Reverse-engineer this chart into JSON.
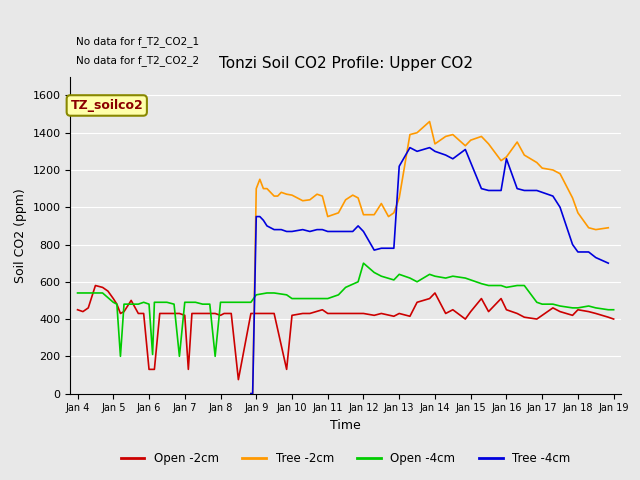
{
  "title": "Tonzi Soil CO2 Profile: Upper CO2",
  "xlabel": "Time",
  "ylabel": "Soil CO2 (ppm)",
  "ylim": [
    0,
    1700
  ],
  "yticks": [
    0,
    200,
    400,
    600,
    800,
    1000,
    1200,
    1400,
    1600
  ],
  "no_data_text": [
    "No data for f_T2_CO2_1",
    "No data for f_T2_CO2_2"
  ],
  "legend_label_box": "TZ_soilco2",
  "background_color": "#e8e8e8",
  "colors": {
    "open_2cm": "#cc0000",
    "tree_2cm": "#ff9900",
    "open_4cm": "#00cc00",
    "tree_4cm": "#0000dd"
  },
  "xtick_labels": [
    "Jan 4",
    "Jan 5",
    "Jan 6",
    "Jan 7",
    "Jan 8",
    "Jan 9",
    "Jan 10",
    "Jan 11",
    "Jan 12",
    "Jan 13",
    "Jan 14",
    "Jan 15",
    "Jan 16",
    "Jan 17",
    "Jan 18",
    "Jan 19"
  ],
  "open_2cm_x": [
    0,
    0.15,
    0.3,
    0.5,
    0.7,
    0.85,
    1.0,
    1.1,
    1.2,
    1.3,
    1.5,
    1.7,
    1.85,
    2.0,
    2.1,
    2.15,
    2.3,
    2.5,
    2.7,
    2.85,
    3.0,
    3.1,
    3.2,
    3.3,
    3.5,
    3.7,
    3.85,
    4.0,
    4.1,
    4.2,
    4.3,
    4.5,
    4.85,
    5.0,
    5.3,
    5.5,
    5.85,
    6.0,
    6.3,
    6.5,
    6.85,
    7.0,
    7.3,
    7.5,
    7.85,
    8.0,
    8.3,
    8.5,
    8.85,
    9.0,
    9.3,
    9.5,
    9.85,
    10.0,
    10.3,
    10.5,
    10.85,
    11.0,
    11.3,
    11.5,
    11.85,
    12.0,
    12.3,
    12.5,
    12.85,
    13.0,
    13.3,
    13.5,
    13.85,
    14.0,
    14.3,
    14.5,
    14.85,
    15.0
  ],
  "open_2cm_y": [
    450,
    440,
    460,
    580,
    570,
    550,
    510,
    480,
    430,
    440,
    500,
    430,
    430,
    130,
    130,
    130,
    430,
    430,
    430,
    430,
    420,
    130,
    430,
    430,
    430,
    430,
    430,
    420,
    430,
    430,
    430,
    75,
    430,
    430,
    430,
    430,
    130,
    420,
    430,
    430,
    450,
    430,
    430,
    430,
    430,
    430,
    420,
    430,
    415,
    430,
    415,
    490,
    510,
    540,
    430,
    450,
    400,
    440,
    510,
    440,
    510,
    450,
    430,
    410,
    400,
    420,
    460,
    440,
    420,
    450,
    440,
    430,
    410,
    400
  ],
  "tree_2cm_x": [
    4.85,
    4.9,
    5.0,
    5.1,
    5.2,
    5.3,
    5.5,
    5.6,
    5.7,
    5.85,
    6.0,
    6.3,
    6.5,
    6.7,
    6.85,
    7.0,
    7.3,
    7.5,
    7.7,
    7.85,
    8.0,
    8.3,
    8.5,
    8.7,
    8.85,
    9.0,
    9.3,
    9.5,
    9.85,
    10.0,
    10.3,
    10.5,
    10.85,
    11.0,
    11.3,
    11.5,
    11.85,
    12.0,
    12.3,
    12.5,
    12.85,
    13.0,
    13.3,
    13.5,
    13.85,
    14.0,
    14.3,
    14.5,
    14.85
  ],
  "tree_2cm_y": [
    0,
    0,
    1100,
    1150,
    1100,
    1100,
    1060,
    1060,
    1080,
    1070,
    1065,
    1035,
    1040,
    1070,
    1060,
    950,
    970,
    1040,
    1065,
    1050,
    960,
    960,
    1020,
    950,
    970,
    1050,
    1390,
    1400,
    1460,
    1340,
    1380,
    1390,
    1330,
    1360,
    1380,
    1340,
    1250,
    1270,
    1350,
    1280,
    1240,
    1210,
    1200,
    1180,
    1050,
    970,
    890,
    880,
    890
  ],
  "open_4cm_x": [
    0,
    0.3,
    0.5,
    0.7,
    1.0,
    1.1,
    1.2,
    1.3,
    1.5,
    1.7,
    1.85,
    2.0,
    2.1,
    2.15,
    2.3,
    2.5,
    2.7,
    2.85,
    3.0,
    3.1,
    3.15,
    3.3,
    3.5,
    3.7,
    3.85,
    4.0,
    4.1,
    4.15,
    4.3,
    4.5,
    4.7,
    4.85,
    5.0,
    5.3,
    5.5,
    5.85,
    6.0,
    6.3,
    6.5,
    6.85,
    7.0,
    7.3,
    7.5,
    7.85,
    8.0,
    8.3,
    8.5,
    8.85,
    9.0,
    9.3,
    9.5,
    9.85,
    10.0,
    10.3,
    10.5,
    10.85,
    11.0,
    11.3,
    11.5,
    11.85,
    12.0,
    12.3,
    12.5,
    12.85,
    13.0,
    13.3,
    13.5,
    13.85,
    14.0,
    14.3,
    14.5,
    14.85,
    15.0
  ],
  "open_4cm_y": [
    540,
    540,
    540,
    540,
    490,
    480,
    200,
    480,
    480,
    480,
    490,
    480,
    210,
    490,
    490,
    490,
    480,
    200,
    490,
    490,
    490,
    490,
    480,
    480,
    200,
    490,
    490,
    490,
    490,
    490,
    490,
    490,
    530,
    540,
    540,
    530,
    510,
    510,
    510,
    510,
    510,
    530,
    570,
    600,
    700,
    650,
    630,
    610,
    640,
    620,
    600,
    640,
    630,
    620,
    630,
    620,
    610,
    590,
    580,
    580,
    570,
    580,
    580,
    490,
    480,
    480,
    470,
    460,
    460,
    470,
    460,
    450,
    450
  ],
  "tree_4cm_x": [
    4.85,
    4.9,
    5.0,
    5.1,
    5.2,
    5.3,
    5.5,
    5.7,
    5.85,
    6.0,
    6.3,
    6.5,
    6.7,
    6.85,
    7.0,
    7.3,
    7.5,
    7.7,
    7.85,
    8.0,
    8.3,
    8.5,
    8.7,
    8.85,
    9.0,
    9.3,
    9.5,
    9.85,
    10.0,
    10.3,
    10.5,
    10.85,
    11.0,
    11.3,
    11.5,
    11.85,
    12.0,
    12.3,
    12.5,
    12.85,
    13.0,
    13.3,
    13.5,
    13.85,
    14.0,
    14.3,
    14.5,
    14.85
  ],
  "tree_4cm_y": [
    0,
    0,
    950,
    950,
    930,
    900,
    880,
    880,
    870,
    870,
    880,
    870,
    880,
    880,
    870,
    870,
    870,
    870,
    900,
    870,
    770,
    780,
    780,
    780,
    1220,
    1320,
    1300,
    1320,
    1300,
    1280,
    1260,
    1310,
    1240,
    1100,
    1090,
    1090,
    1260,
    1100,
    1090,
    1090,
    1080,
    1060,
    1000,
    800,
    760,
    760,
    730,
    700
  ]
}
